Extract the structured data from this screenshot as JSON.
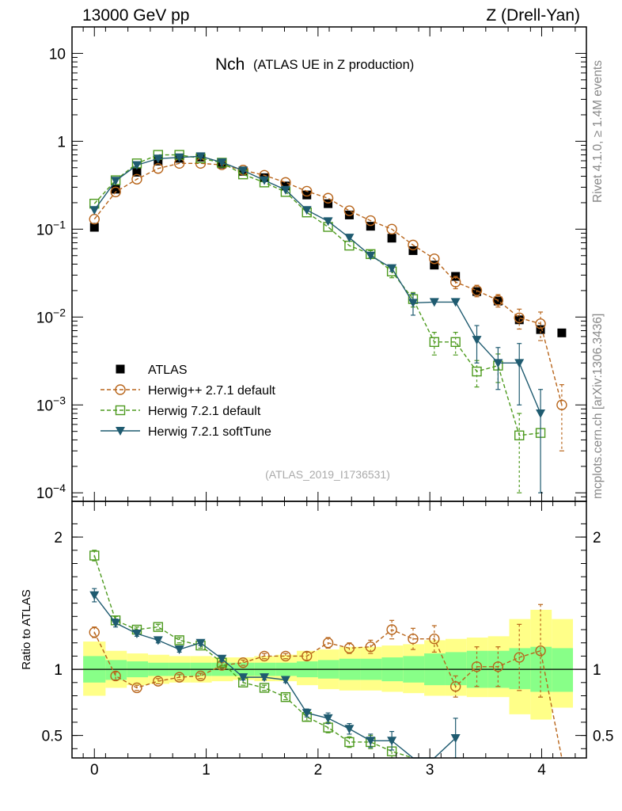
{
  "header": {
    "left": "13000 GeV pp",
    "right": "Z (Drell-Yan)"
  },
  "side_labels": {
    "rivet": "Rivet 4.1.0, ≥ 1.4M events",
    "mcplots": "mcplots.cern.ch [arXiv:1306.3436]"
  },
  "chart_data": {
    "type": "scatter",
    "title_main": "Nch",
    "title_sub": "(ATLAS UE in Z production)",
    "watermark": "(ATLAS_2019_I1736531)",
    "ratio_ylabel": "Ratio to ATLAS",
    "xlim": [
      -0.2,
      4.4
    ],
    "x_ticks": [
      "0",
      "1",
      "2",
      "3",
      "4"
    ],
    "main_ylim": [
      8e-05,
      20
    ],
    "main_yscale": "log",
    "main_yticks": [
      "10−4",
      "10−3",
      "10−2",
      "10−1",
      "1",
      "10"
    ],
    "ratio_ylim": [
      0.33,
      2.27
    ],
    "ratio_yticks": [
      "0.5",
      "1",
      "2"
    ],
    "x": [
      0,
      0.19,
      0.38,
      0.57,
      0.76,
      0.95,
      1.14,
      1.33,
      1.52,
      1.71,
      1.9,
      2.09,
      2.28,
      2.47,
      2.66,
      2.85,
      3.04,
      3.23,
      3.42,
      3.61,
      3.8,
      3.99,
      4.18
    ],
    "series": [
      {
        "name": "ATLAS",
        "style": "data",
        "color": "#000000",
        "values": [
          0.105,
          0.285,
          0.445,
          0.595,
          0.64,
          0.66,
          0.55,
          0.455,
          0.385,
          0.31,
          0.245,
          0.195,
          0.145,
          0.108,
          0.079,
          0.057,
          0.039,
          0.029,
          0.0195,
          0.0152,
          0.0093,
          0.0072,
          0.0066
        ]
      },
      {
        "name": "Herwig++ 2.7.1 default",
        "style": "circle",
        "color": "#b8651b",
        "values": [
          0.13,
          0.265,
          0.37,
          0.49,
          0.56,
          0.56,
          0.54,
          0.47,
          0.41,
          0.34,
          0.27,
          0.225,
          0.162,
          0.125,
          0.1,
          0.066,
          0.046,
          0.025,
          0.02,
          0.0155,
          0.0098,
          0.0084,
          0.001
        ],
        "errors": [
          0,
          0,
          0,
          0,
          0,
          0,
          0,
          0,
          0,
          0,
          0,
          0,
          0,
          0,
          0,
          0,
          0,
          0.004,
          0.003,
          0.0025,
          0.0025,
          0.003,
          0.0007
        ],
        "ratio": [
          1.28,
          0.95,
          0.86,
          0.91,
          0.94,
          0.95,
          1.03,
          1.05,
          1.1,
          1.1,
          1.1,
          1.2,
          1.16,
          1.17,
          1.3,
          1.23,
          1.23,
          0.87,
          1.02,
          1.02,
          1.09,
          1.14,
          0.3
        ],
        "ratio_errors": [
          0.04,
          0.03,
          0.02,
          0.02,
          0.02,
          0.02,
          0.02,
          0.02,
          0.02,
          0.02,
          0.03,
          0.04,
          0.04,
          0.05,
          0.07,
          0.08,
          0.1,
          0.08,
          0.15,
          0.15,
          0.25,
          0.35,
          0
        ]
      },
      {
        "name": "Herwig 7.2.1 default",
        "style": "square",
        "color": "#4d9a1e",
        "values": [
          0.195,
          0.36,
          0.56,
          0.7,
          0.7,
          0.64,
          0.57,
          0.42,
          0.34,
          0.265,
          0.155,
          0.106,
          0.065,
          0.052,
          0.033,
          0.016,
          0.0052,
          0.0052,
          0.0024,
          0.0028,
          0.00045,
          0.00048
        ],
        "errors": [
          0,
          0,
          0,
          0,
          0,
          0,
          0,
          0,
          0,
          0,
          0,
          0,
          0,
          0.005,
          0.005,
          0.003,
          0.0015,
          0.0015,
          0.0008,
          0.001,
          0.00035,
          0
        ],
        "ratio": [
          1.86,
          1.37,
          1.3,
          1.32,
          1.22,
          1.18,
          1.05,
          0.9,
          0.86,
          0.79,
          0.64,
          0.56,
          0.45,
          0.45,
          0.38,
          0.27
        ],
        "ratio_errors": [
          0.04,
          0.03,
          0.02,
          0.02,
          0.02,
          0.02,
          0.02,
          0.02,
          0.02,
          0.02,
          0.03,
          0.04,
          0.04,
          0.05,
          0.07,
          0
        ]
      },
      {
        "name": "Herwig 7.2.1 softTune",
        "style": "triangle",
        "color": "#1f5b70",
        "values": [
          0.165,
          0.355,
          0.535,
          0.635,
          0.655,
          0.675,
          0.575,
          0.465,
          0.36,
          0.28,
          0.165,
          0.123,
          0.08,
          0.05,
          0.036,
          0.0145,
          0.0148,
          0.0148,
          0.0055,
          0.003,
          0.003,
          0.0008
        ],
        "errors": [
          0,
          0,
          0,
          0,
          0,
          0,
          0,
          0,
          0,
          0,
          0,
          0,
          0,
          0,
          0.003,
          0.004,
          0,
          0,
          0.0025,
          0.0015,
          0.002,
          0.0007
        ],
        "ratio": [
          1.56,
          1.35,
          1.27,
          1.22,
          1.15,
          1.2,
          1.08,
          0.94,
          0.94,
          0.92,
          0.67,
          0.63,
          0.55,
          0.46,
          0.46,
          0.25,
          0.1,
          0.48
        ],
        "ratio_errors": [
          0.05,
          0.03,
          0.02,
          0.02,
          0.02,
          0.02,
          0.02,
          0.02,
          0.02,
          0.02,
          0.03,
          0.04,
          0.04,
          0.05,
          0.07,
          0,
          0,
          0.15
        ]
      }
    ],
    "band_edges": [
      -0.1,
      0.1,
      0.29,
      0.48,
      0.67,
      0.86,
      1.05,
      1.24,
      1.43,
      1.62,
      1.81,
      2.0,
      2.19,
      2.38,
      2.57,
      2.76,
      2.95,
      3.14,
      3.33,
      3.52,
      3.71,
      3.9,
      4.09,
      4.28
    ],
    "band_green": [
      [
        0.9,
        1.1
      ],
      [
        0.92,
        1.07
      ],
      [
        0.94,
        1.06
      ],
      [
        0.95,
        1.05
      ],
      [
        0.95,
        1.05
      ],
      [
        0.95,
        1.05
      ],
      [
        0.95,
        1.05
      ],
      [
        0.95,
        1.05
      ],
      [
        0.95,
        1.05
      ],
      [
        0.95,
        1.05
      ],
      [
        0.94,
        1.06
      ],
      [
        0.93,
        1.07
      ],
      [
        0.92,
        1.08
      ],
      [
        0.92,
        1.08
      ],
      [
        0.91,
        1.09
      ],
      [
        0.9,
        1.1
      ],
      [
        0.88,
        1.12
      ],
      [
        0.88,
        1.13
      ],
      [
        0.86,
        1.14
      ],
      [
        0.86,
        1.14
      ],
      [
        0.85,
        1.16
      ],
      [
        0.83,
        1.17
      ],
      [
        0.83,
        1.16
      ]
    ],
    "band_yellow": [
      [
        0.8,
        1.21
      ],
      [
        0.86,
        1.14
      ],
      [
        0.88,
        1.12
      ],
      [
        0.89,
        1.11
      ],
      [
        0.9,
        1.1
      ],
      [
        0.9,
        1.1
      ],
      [
        0.91,
        1.09
      ],
      [
        0.92,
        1.09
      ],
      [
        0.91,
        1.1
      ],
      [
        0.91,
        1.11
      ],
      [
        0.88,
        1.14
      ],
      [
        0.85,
        1.15
      ],
      [
        0.84,
        1.17
      ],
      [
        0.84,
        1.17
      ],
      [
        0.83,
        1.18
      ],
      [
        0.82,
        1.19
      ],
      [
        0.8,
        1.22
      ],
      [
        0.8,
        1.23
      ],
      [
        0.79,
        1.24
      ],
      [
        0.79,
        1.25
      ],
      [
        0.66,
        1.38
      ],
      [
        0.62,
        1.45
      ],
      [
        0.71,
        1.38
      ]
    ]
  }
}
